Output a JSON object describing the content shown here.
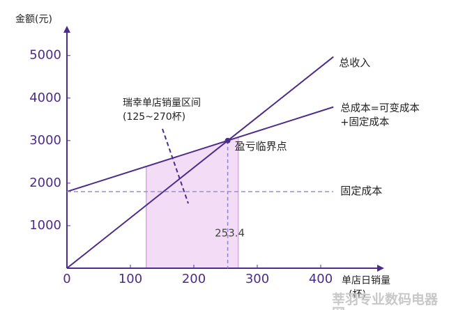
{
  "chart_data": {
    "type": "line",
    "y_label": "金额(元)",
    "x_label": [
      "单店日销量",
      "(杯)"
    ],
    "xlim": [
      0,
      500
    ],
    "ylim": [
      0,
      5700
    ],
    "xticks": [
      0,
      100,
      200,
      300,
      400
    ],
    "yticks": [
      1000,
      2000,
      3000,
      4000,
      5000
    ],
    "axis_color": "#4b2c8a",
    "series": [
      {
        "name": "总收入",
        "color": "#4b2c8a",
        "x": [
          0,
          420
        ],
        "values": [
          0,
          4970
        ]
      },
      {
        "name": "总成本=可变成本+固定成本",
        "color": "#4b2c8a",
        "x": [
          0,
          420
        ],
        "values": [
          1800,
          3790
        ]
      },
      {
        "name": "固定成本",
        "color": "#9b8fd6",
        "dash": true,
        "x": [
          0,
          420
        ],
        "values": [
          1800,
          1800
        ]
      }
    ],
    "range": [
      125,
      270
    ],
    "range_color": "#f2dcf6",
    "range_label": [
      "瑞幸单店销量区间",
      "(125~270杯)"
    ],
    "breakeven": {
      "x": 253.4,
      "y": 3000,
      "label": "盈亏临界点"
    },
    "watermark": "莘羽专业数码电器网"
  }
}
